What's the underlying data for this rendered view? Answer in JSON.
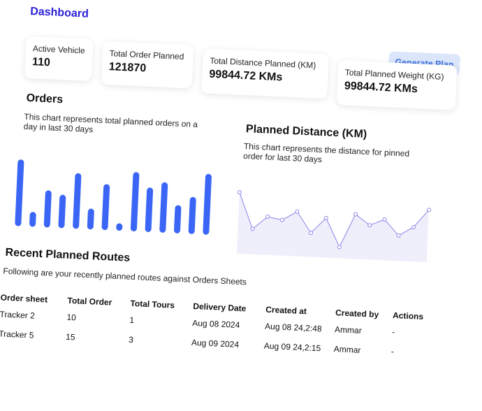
{
  "header": {
    "title": "Dashboard",
    "generate_label": "Generate Plan"
  },
  "stats": [
    {
      "label": "Active Vehicle",
      "value": "110"
    },
    {
      "label": "Total Order Planned",
      "value": "121870"
    },
    {
      "label": "Total Distance Planned (KM)",
      "value": "99844.72 KMs"
    },
    {
      "label": "Total Planned Weight (KG)",
      "value": "99844.72 KMs"
    }
  ],
  "orders_chart": {
    "title": "Orders",
    "description": "This chart represents total planned orders on a day in last 30 days"
  },
  "distance_chart": {
    "title": "Planned Distance (KM)",
    "description": "This chart represents the distance for pinned order for last 30 days"
  },
  "chart_data": [
    {
      "type": "bar",
      "values": [
        90,
        20,
        50,
        45,
        75,
        28,
        62,
        10,
        80,
        60,
        68,
        38,
        50,
        82
      ],
      "ylim": [
        0,
        100
      ],
      "color": "#3b66f5"
    },
    {
      "type": "line",
      "values": [
        78,
        22,
        42,
        38,
        52,
        20,
        44,
        0,
        52,
        36,
        46,
        22,
        36,
        64
      ],
      "ylim": [
        0,
        100
      ],
      "color": "#8a86e8",
      "fill": "#efeefb"
    }
  ],
  "routes": {
    "title": "Recent Planned Routes",
    "description": "Following are your recently planned routes against Orders Sheets",
    "columns": [
      "Order sheet",
      "Total Order",
      "Total Tours",
      "Delivery Date",
      "Created at",
      "Created by",
      "Actions"
    ],
    "rows": [
      [
        "Tracker 2",
        "10",
        "1",
        "Aug 08 2024",
        "Aug 08 24,2:48",
        "Ammar",
        "-"
      ],
      [
        "Tracker 5",
        "15",
        "3",
        "Aug 09 2024",
        "Aug 09 24,2:15",
        "Ammar",
        "-"
      ]
    ]
  }
}
